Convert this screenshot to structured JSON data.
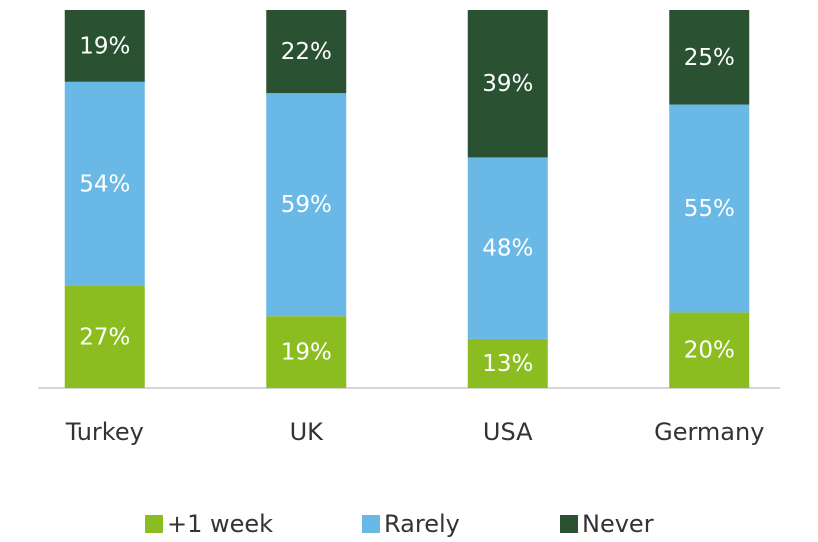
{
  "chart_data": {
    "type": "stacked_bar",
    "categories": [
      "Turkey",
      "UK",
      "USA",
      "Germany"
    ],
    "series": [
      {
        "name": "+1 week",
        "color": "#8bbd21",
        "values": [
          27,
          19,
          13,
          20
        ],
        "value_labels": [
          "27%",
          "19%",
          "13%",
          "20%"
        ]
      },
      {
        "name": "Rarely",
        "color": "#6ab8e6",
        "values": [
          54,
          59,
          48,
          55
        ],
        "value_labels": [
          "54%",
          "59%",
          "48%",
          "55%"
        ]
      },
      {
        "name": "Never",
        "color": "#2a5232",
        "values": [
          19,
          22,
          39,
          25
        ],
        "value_labels": [
          "19%",
          "22%",
          "39%",
          "25%"
        ]
      }
    ],
    "ylim": [
      0,
      100
    ]
  }
}
